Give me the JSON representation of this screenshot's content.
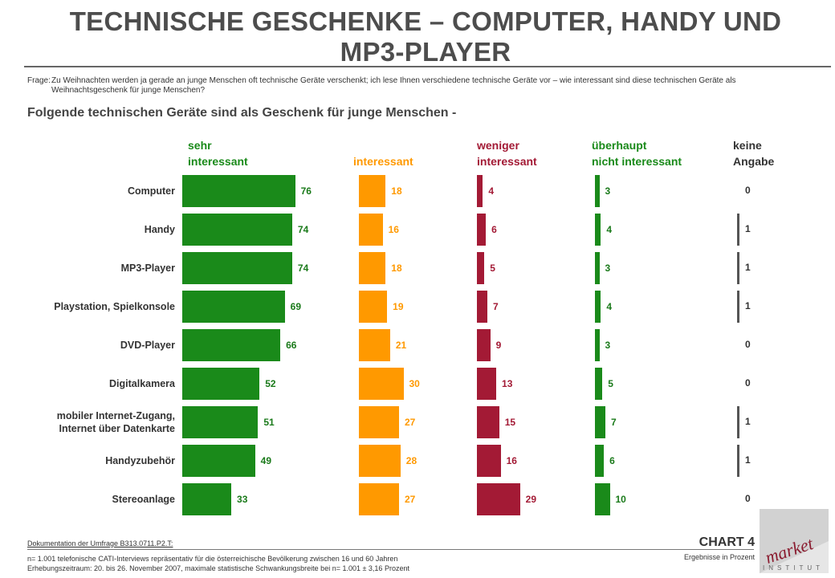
{
  "page": {
    "title": "TECHNISCHE GESCHENKE – COMPUTER, HANDY UND MP3-PLAYER",
    "question_label": "Frage:",
    "question_text": "Zu Weihnachten werden ja gerade an junge Menschen oft technische Geräte verschenkt; ich lese Ihnen verschiedene technische Geräte vor – wie interessant sind diese technischen Geräte als Weihnachtsgeschenk für junge Menschen?",
    "subtitle": "Folgende technischen Geräte sind als Geschenk für junge Menschen -"
  },
  "footer": {
    "doc_link": "Dokumentation der Umfrage B313.0711.P2.T:",
    "note_line1": "n= 1.001 telefonische CATI-Interviews repräsentativ für die österreichische Bevölkerung zwischen 16 und 60 Jahren",
    "note_line2": "Erhebungszeitraum: 20. bis 26. November 2007, maximale statistische Schwankungsbreite bei n= 1.001 ± 3,16 Prozent",
    "chart_number": "CHART 4",
    "chart_subtitle": "Ergebnisse in Prozent",
    "logo_word": "market",
    "logo_sub": "INSTITUT"
  },
  "chart_data": {
    "type": "bar",
    "orientation": "horizontal",
    "unit": "Prozent",
    "categories": [
      "Computer",
      "Handy",
      "MP3-Player",
      "Playstation, Spielkonsole",
      "DVD-Player",
      "Digitalkamera",
      "mobiler Internet-Zugang, Internet über Datenkarte",
      "Handyzubehör",
      "Stereoanlage"
    ],
    "series": [
      {
        "name": "sehr interessant",
        "color": "#1a8a1a",
        "values": [
          76,
          74,
          74,
          69,
          66,
          52,
          51,
          49,
          33
        ]
      },
      {
        "name": "interessant",
        "color": "#ff9900",
        "values": [
          18,
          16,
          18,
          19,
          21,
          30,
          27,
          28,
          27
        ]
      },
      {
        "name": "weniger interessant",
        "color": "#a31a35",
        "values": [
          4,
          6,
          5,
          7,
          9,
          13,
          15,
          16,
          29
        ]
      },
      {
        "name": "überhaupt nicht interessant",
        "color": "#1a8a1a",
        "values": [
          3,
          4,
          3,
          4,
          3,
          5,
          7,
          6,
          10
        ]
      },
      {
        "name": "keine Angabe",
        "color": "#555555",
        "values": [
          0,
          1,
          1,
          1,
          0,
          0,
          1,
          1,
          0
        ]
      }
    ],
    "column_headers": [
      {
        "line1": "sehr",
        "line2": "interessant",
        "color": "#1a8a1a"
      },
      {
        "line1": "",
        "line2": "interessant",
        "color": "#ff9900"
      },
      {
        "line1": "weniger",
        "line2": "interessant",
        "color": "#a31a35"
      },
      {
        "line1": "überhaupt",
        "line2": "nicht interessant",
        "color": "#1a8a1a"
      },
      {
        "line1": "keine",
        "line2": "Angabe",
        "color": "#333333"
      }
    ]
  }
}
